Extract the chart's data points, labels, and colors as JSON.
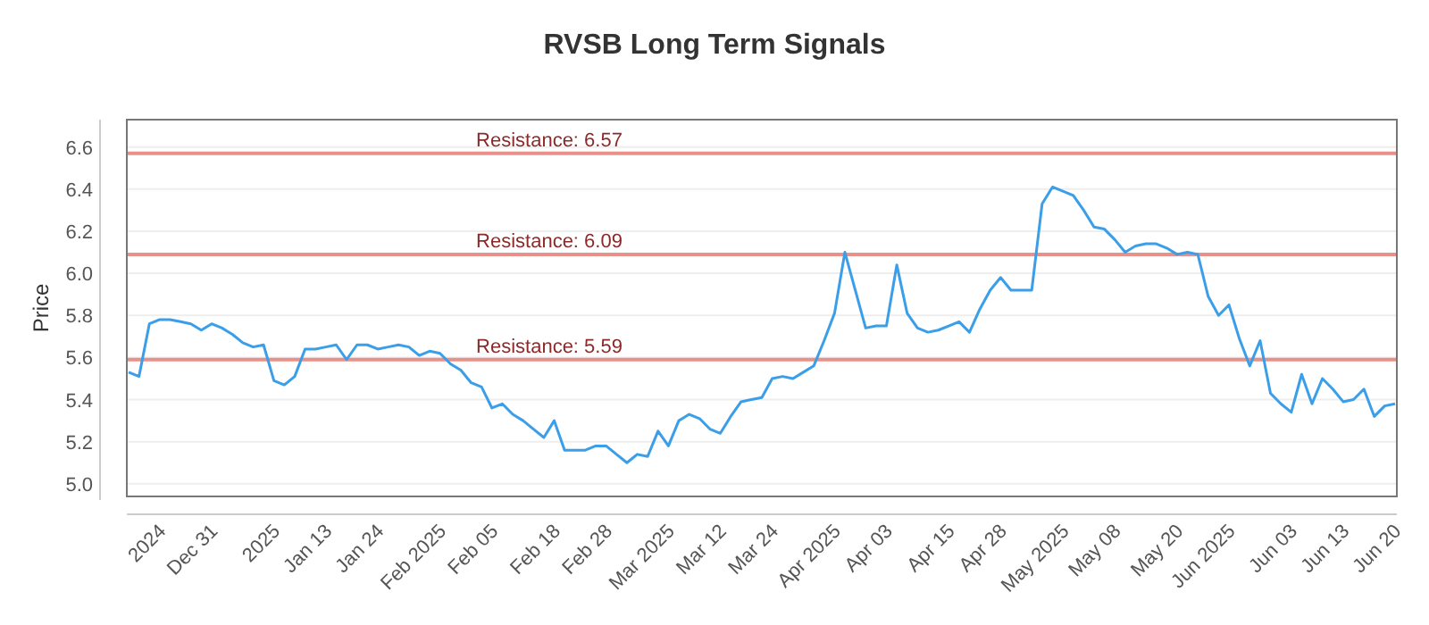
{
  "chart_data": {
    "type": "line",
    "title": "RVSB Long Term Signals",
    "ylabel": "Price",
    "categories": [
      null,
      null,
      null,
      "2024",
      null,
      null,
      null,
      null,
      "Dec 31",
      null,
      null,
      null,
      null,
      null,
      "2025",
      null,
      null,
      null,
      null,
      "Jan 13",
      null,
      null,
      null,
      null,
      "Jan 24",
      null,
      null,
      null,
      null,
      null,
      "Feb 2025",
      null,
      null,
      null,
      null,
      "Feb 05",
      null,
      null,
      null,
      null,
      null,
      "Feb 18",
      null,
      null,
      null,
      null,
      "Feb 28",
      null,
      null,
      null,
      null,
      null,
      "Mar 2025",
      null,
      null,
      null,
      null,
      "Mar 12",
      null,
      null,
      null,
      null,
      "Mar 24",
      null,
      null,
      null,
      null,
      null,
      "Apr 2025",
      null,
      null,
      null,
      null,
      "Apr 03",
      null,
      null,
      null,
      null,
      null,
      "Apr 15",
      null,
      null,
      null,
      null,
      "Apr 28",
      null,
      null,
      null,
      null,
      null,
      "May 2025",
      null,
      null,
      null,
      null,
      "May 08",
      null,
      null,
      null,
      null,
      null,
      "May 20",
      null,
      null,
      null,
      null,
      "Jun 2025",
      null,
      null,
      null,
      null,
      null,
      "Jun 03",
      null,
      null,
      null,
      null,
      "Jun 13",
      null,
      null,
      null,
      null,
      "Jun 20"
    ],
    "series": [
      {
        "color": "#3a9ee8",
        "values": [
          5.53,
          5.51,
          5.76,
          5.78,
          5.78,
          5.77,
          5.76,
          5.73,
          5.76,
          5.74,
          5.71,
          5.67,
          5.65,
          5.66,
          5.49,
          5.47,
          5.51,
          5.64,
          5.64,
          5.65,
          5.66,
          5.59,
          5.66,
          5.66,
          5.64,
          5.65,
          5.66,
          5.65,
          5.61,
          5.63,
          5.62,
          5.57,
          5.54,
          5.48,
          5.46,
          5.36,
          5.38,
          5.33,
          5.3,
          5.26,
          5.22,
          5.3,
          5.16,
          5.16,
          5.16,
          5.18,
          5.18,
          5.14,
          5.1,
          5.14,
          5.13,
          5.25,
          5.18,
          5.3,
          5.33,
          5.31,
          5.26,
          5.24,
          5.32,
          5.39,
          5.4,
          5.41,
          5.5,
          5.51,
          5.5,
          5.53,
          5.56,
          5.68,
          5.81,
          6.1,
          5.92,
          5.74,
          5.75,
          5.75,
          6.04,
          5.81,
          5.74,
          5.72,
          5.73,
          5.75,
          5.77,
          5.72,
          5.83,
          5.92,
          5.98,
          5.92,
          5.92,
          5.92,
          6.33,
          6.41,
          6.39,
          6.37,
          6.3,
          6.22,
          6.21,
          6.16,
          6.1,
          6.13,
          6.14,
          6.14,
          6.12,
          6.09,
          6.1,
          6.09,
          5.89,
          5.8,
          5.85,
          5.69,
          5.56,
          5.68,
          5.43,
          5.38,
          5.34,
          5.52,
          5.38,
          5.5,
          5.45,
          5.39,
          5.4,
          5.45,
          5.32,
          5.37,
          5.38
        ]
      }
    ],
    "ylim": [
      4.94,
      6.73
    ],
    "yticks": [
      {
        "value": 5,
        "label": "5.0"
      },
      5.2,
      5.4,
      5.6,
      5.8,
      {
        "value": 6,
        "label": "6.0"
      },
      6.2,
      6.4,
      6.6
    ],
    "grid": "y",
    "marker": "none",
    "line_style": "solid",
    "ref_lines": [
      {
        "axis": "y",
        "value": 6.57,
        "label": "Resistance: 6.57",
        "color": "#e8908a"
      },
      {
        "axis": "y",
        "value": 6.09,
        "label": "Resistance: 6.09",
        "color": "#e8908a"
      },
      {
        "axis": "y",
        "value": 5.59,
        "label": "Resistance: 5.59",
        "color": "#e8908a"
      }
    ]
  }
}
